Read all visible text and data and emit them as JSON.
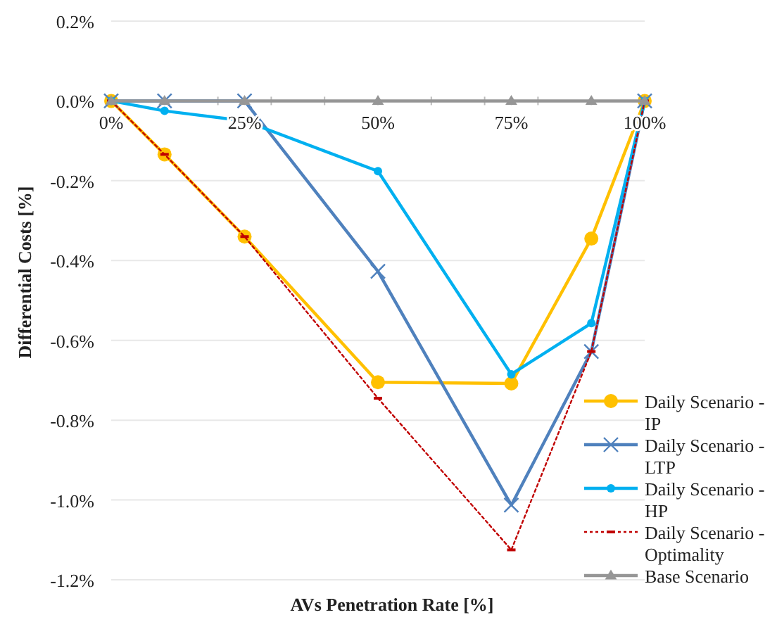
{
  "chart_data": {
    "type": "line",
    "xlabel": "AVs Penetration Rate [%]",
    "ylabel": "Differential Costs [%]",
    "x": [
      0,
      10,
      25,
      50,
      75,
      90,
      100
    ],
    "xlim": [
      0,
      100
    ],
    "xticks": [
      {
        "value": 0,
        "label": "0%"
      },
      {
        "value": 10,
        "label": null
      },
      {
        "value": 20,
        "label": null
      },
      {
        "value": 25,
        "label": "25%"
      },
      {
        "value": 30,
        "label": null
      },
      {
        "value": 40,
        "label": null
      },
      {
        "value": 50,
        "label": "50%"
      },
      {
        "value": 60,
        "label": null
      },
      {
        "value": 70,
        "label": null
      },
      {
        "value": 75,
        "label": "75%"
      },
      {
        "value": 80,
        "label": null
      },
      {
        "value": 90,
        "label": null
      },
      {
        "value": 100,
        "label": "100%"
      }
    ],
    "ylim": [
      -1.2,
      0.2
    ],
    "yticks": [
      {
        "value": 0.2,
        "label": "0.2%"
      },
      {
        "value": 0,
        "label": "0.0%"
      },
      {
        "value": -0.2,
        "label": "-0.2%"
      },
      {
        "value": -0.4,
        "label": "-0.4%"
      },
      {
        "value": -0.6,
        "label": "-0.6%"
      },
      {
        "value": -0.8,
        "label": "-0.8%"
      },
      {
        "value": -1.0,
        "label": "-1.0%"
      },
      {
        "value": -1.2,
        "label": "-1.2%"
      }
    ],
    "grid": "y",
    "legend": "right",
    "series": [
      {
        "name": "Daily Scenario - IP",
        "color": "#ffc000",
        "marker": "circle",
        "line_style": "solid",
        "values": [
          0,
          -0.134,
          -0.34,
          -0.705,
          -0.708,
          -0.345,
          0
        ]
      },
      {
        "name": "Daily Scenario - LTP",
        "color": "#4f81bd",
        "marker": "cross",
        "line_style": "solid",
        "values": [
          0,
          0,
          0,
          -0.427,
          -1.013,
          -0.628,
          0
        ]
      },
      {
        "name": "Daily Scenario - HP",
        "color": "#00b0f0",
        "marker": "circle",
        "line_style": "solid",
        "values": [
          0,
          -0.025,
          -0.05,
          -0.176,
          -0.685,
          -0.557,
          0
        ]
      },
      {
        "name": "Daily Scenario - Optimality",
        "color": "#c00000",
        "marker": "square",
        "line_style": "dotted",
        "values": [
          0,
          -0.134,
          -0.34,
          -0.745,
          -1.125,
          -0.628,
          0
        ]
      },
      {
        "name": "Base Scenario",
        "color": "#969696",
        "marker": "triangle",
        "line_style": "solid",
        "values": [
          0,
          0,
          0,
          0,
          0,
          0,
          0
        ]
      }
    ]
  }
}
